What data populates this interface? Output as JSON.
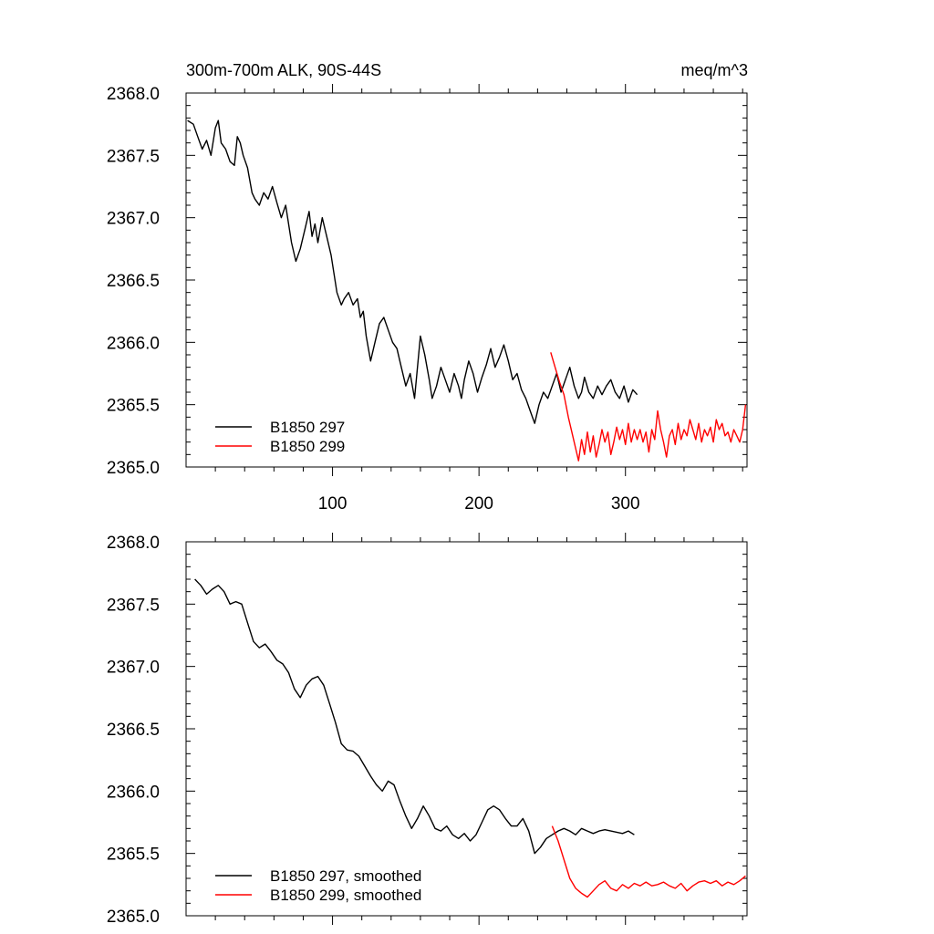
{
  "header": {
    "title": "300m-700m ALK, 90S-44S",
    "units": "meq/m^3"
  },
  "colors": {
    "black": "#000000",
    "red": "#ff0000"
  },
  "chart_data": [
    {
      "type": "line",
      "xlim": [
        0,
        383
      ],
      "ylim": [
        2365.0,
        2368.0
      ],
      "x_tick_labels": [
        "100",
        "200",
        "300"
      ],
      "x_ticks": [
        100,
        200,
        300
      ],
      "y_tick_labels": [
        "2368.0",
        "2367.5",
        "2367.0",
        "2366.5",
        "2366.0",
        "2365.5",
        "2365.0"
      ],
      "y_ticks": [
        2368.0,
        2367.5,
        2367.0,
        2366.5,
        2366.0,
        2365.5,
        2365.0
      ],
      "legend_position": "bottom-left",
      "series": [
        {
          "name": "B1850 297",
          "color": "#000000",
          "x": [
            1,
            5,
            8,
            11,
            14,
            17,
            20,
            22,
            24,
            27,
            30,
            33,
            35,
            37,
            39,
            42,
            45,
            47,
            50,
            53,
            56,
            59,
            62,
            65,
            68,
            70,
            72,
            75,
            78,
            81,
            84,
            86,
            88,
            90,
            93,
            96,
            99,
            101,
            103,
            106,
            108,
            111,
            114,
            117,
            119,
            121,
            123,
            126,
            129,
            132,
            135,
            138,
            141,
            144,
            147,
            150,
            153,
            156,
            158,
            160,
            163,
            166,
            168,
            171,
            174,
            177,
            180,
            183,
            186,
            188,
            190,
            193,
            196,
            199,
            202,
            205,
            208,
            211,
            214,
            217,
            220,
            223,
            226,
            229,
            232,
            235,
            238,
            241,
            244,
            247,
            250,
            253,
            256,
            259,
            262,
            265,
            268,
            270,
            272,
            275,
            278,
            281,
            284,
            287,
            290,
            293,
            296,
            299,
            302,
            305,
            308
          ],
          "values": [
            2367.78,
            2367.75,
            2367.65,
            2367.55,
            2367.62,
            2367.5,
            2367.72,
            2367.78,
            2367.6,
            2367.55,
            2367.45,
            2367.42,
            2367.65,
            2367.6,
            2367.5,
            2367.4,
            2367.2,
            2367.15,
            2367.1,
            2367.2,
            2367.15,
            2367.25,
            2367.12,
            2367.0,
            2367.1,
            2366.95,
            2366.8,
            2366.65,
            2366.75,
            2366.9,
            2367.05,
            2366.85,
            2366.95,
            2366.8,
            2367.0,
            2366.85,
            2366.7,
            2366.55,
            2366.4,
            2366.3,
            2366.35,
            2366.4,
            2366.3,
            2366.35,
            2366.2,
            2366.25,
            2366.05,
            2365.85,
            2366.0,
            2366.15,
            2366.2,
            2366.1,
            2366.0,
            2365.95,
            2365.8,
            2365.65,
            2365.75,
            2365.55,
            2365.8,
            2366.05,
            2365.9,
            2365.7,
            2365.55,
            2365.65,
            2365.8,
            2365.7,
            2365.6,
            2365.75,
            2365.65,
            2365.55,
            2365.7,
            2365.85,
            2365.75,
            2365.6,
            2365.72,
            2365.82,
            2365.95,
            2365.8,
            2365.88,
            2365.98,
            2365.85,
            2365.7,
            2365.75,
            2365.62,
            2365.55,
            2365.45,
            2365.35,
            2365.5,
            2365.6,
            2365.55,
            2365.65,
            2365.75,
            2365.6,
            2365.7,
            2365.8,
            2365.65,
            2365.55,
            2365.6,
            2365.72,
            2365.6,
            2365.55,
            2365.65,
            2365.58,
            2365.65,
            2365.7,
            2365.6,
            2365.55,
            2365.65,
            2365.52,
            2365.62,
            2365.58
          ]
        },
        {
          "name": "B1850 299",
          "color": "#ff0000",
          "x": [
            249,
            252,
            255,
            258,
            261,
            264,
            266,
            268,
            270,
            272,
            274,
            276,
            278,
            280,
            282,
            284,
            286,
            288,
            290,
            292,
            294,
            296,
            298,
            300,
            302,
            304,
            306,
            308,
            310,
            312,
            314,
            316,
            318,
            320,
            322,
            324,
            326,
            328,
            330,
            332,
            334,
            336,
            338,
            340,
            342,
            344,
            346,
            348,
            350,
            352,
            354,
            356,
            358,
            360,
            362,
            364,
            366,
            368,
            370,
            372,
            374,
            376,
            378,
            380,
            382
          ],
          "values": [
            2365.92,
            2365.8,
            2365.68,
            2365.58,
            2365.4,
            2365.25,
            2365.15,
            2365.05,
            2365.22,
            2365.1,
            2365.28,
            2365.12,
            2365.25,
            2365.08,
            2365.18,
            2365.3,
            2365.2,
            2365.28,
            2365.1,
            2365.2,
            2365.32,
            2365.22,
            2365.3,
            2365.18,
            2365.35,
            2365.2,
            2365.3,
            2365.22,
            2365.3,
            2365.2,
            2365.28,
            2365.12,
            2365.3,
            2365.22,
            2365.45,
            2365.3,
            2365.2,
            2365.08,
            2365.25,
            2365.3,
            2365.18,
            2365.35,
            2365.22,
            2365.3,
            2365.25,
            2365.38,
            2365.3,
            2365.22,
            2365.35,
            2365.2,
            2365.3,
            2365.25,
            2365.32,
            2365.2,
            2365.38,
            2365.3,
            2365.35,
            2365.25,
            2365.28,
            2365.2,
            2365.3,
            2365.25,
            2365.2,
            2365.3,
            2365.5
          ]
        }
      ]
    },
    {
      "type": "line",
      "xlim": [
        0,
        383
      ],
      "ylim": [
        2365.0,
        2368.0
      ],
      "x_ticks": [
        100,
        200,
        300
      ],
      "y_tick_labels": [
        "2368.0",
        "2367.5",
        "2367.0",
        "2366.5",
        "2366.0",
        "2365.5",
        "2365.0"
      ],
      "y_ticks": [
        2368.0,
        2367.5,
        2367.0,
        2366.5,
        2366.0,
        2365.5,
        2365.0
      ],
      "legend_position": "bottom-left",
      "series": [
        {
          "name": "B1850 297, smoothed",
          "color": "#000000",
          "x": [
            6,
            10,
            14,
            18,
            22,
            26,
            30,
            34,
            38,
            42,
            46,
            50,
            54,
            58,
            62,
            66,
            70,
            74,
            78,
            82,
            86,
            90,
            94,
            98,
            102,
            106,
            110,
            114,
            118,
            122,
            126,
            130,
            134,
            138,
            142,
            146,
            150,
            154,
            158,
            162,
            166,
            170,
            174,
            178,
            182,
            186,
            190,
            194,
            198,
            202,
            206,
            210,
            214,
            218,
            222,
            226,
            230,
            234,
            238,
            242,
            246,
            250,
            254,
            258,
            262,
            266,
            270,
            274,
            278,
            282,
            286,
            290,
            294,
            298,
            302,
            306
          ],
          "values": [
            2367.7,
            2367.65,
            2367.58,
            2367.62,
            2367.65,
            2367.6,
            2367.5,
            2367.52,
            2367.5,
            2367.35,
            2367.2,
            2367.15,
            2367.18,
            2367.12,
            2367.05,
            2367.02,
            2366.95,
            2366.82,
            2366.75,
            2366.85,
            2366.9,
            2366.92,
            2366.85,
            2366.7,
            2366.55,
            2366.38,
            2366.33,
            2366.32,
            2366.28,
            2366.2,
            2366.12,
            2366.05,
            2366.0,
            2366.08,
            2366.05,
            2365.92,
            2365.8,
            2365.7,
            2365.78,
            2365.88,
            2365.8,
            2365.7,
            2365.68,
            2365.72,
            2365.65,
            2365.62,
            2365.66,
            2365.6,
            2365.65,
            2365.75,
            2365.85,
            2365.88,
            2365.85,
            2365.78,
            2365.72,
            2365.72,
            2365.78,
            2365.68,
            2365.5,
            2365.55,
            2365.62,
            2365.65,
            2365.68,
            2365.7,
            2365.68,
            2365.65,
            2365.7,
            2365.68,
            2365.66,
            2365.68,
            2365.69,
            2365.68,
            2365.67,
            2365.66,
            2365.68,
            2365.65
          ]
        },
        {
          "name": "B1850 299, smoothed",
          "color": "#ff0000",
          "x": [
            250,
            254,
            258,
            262,
            266,
            270,
            274,
            278,
            282,
            286,
            290,
            294,
            298,
            302,
            306,
            310,
            314,
            318,
            322,
            326,
            330,
            334,
            338,
            342,
            346,
            350,
            354,
            358,
            362,
            366,
            370,
            374,
            378,
            382
          ],
          "values": [
            2365.72,
            2365.6,
            2365.45,
            2365.3,
            2365.22,
            2365.18,
            2365.15,
            2365.2,
            2365.25,
            2365.28,
            2365.22,
            2365.2,
            2365.25,
            2365.22,
            2365.26,
            2365.24,
            2365.27,
            2365.24,
            2365.25,
            2365.27,
            2365.24,
            2365.22,
            2365.26,
            2365.2,
            2365.24,
            2365.27,
            2365.28,
            2365.26,
            2365.28,
            2365.24,
            2365.27,
            2365.25,
            2365.28,
            2365.32
          ]
        }
      ]
    }
  ]
}
